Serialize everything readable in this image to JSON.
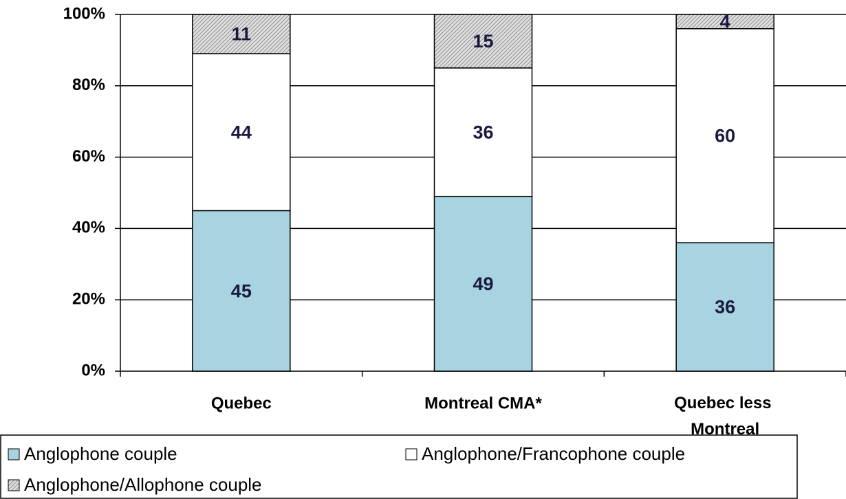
{
  "chart_data": {
    "type": "stacked_bar",
    "categories": [
      "Quebec",
      "Montreal CMA*",
      "Quebec less Montreal"
    ],
    "series": [
      {
        "name": "Anglophone couple",
        "color": "#a8d3e0",
        "values": [
          45,
          49,
          36
        ]
      },
      {
        "name": "Anglophone/Francophone couple",
        "color": "#ffffff",
        "values": [
          44,
          36,
          60
        ]
      },
      {
        "name": "Anglophone/Allophone couple",
        "color": "#8c8c8c",
        "pattern": "hatch",
        "values": [
          11,
          15,
          4
        ]
      }
    ],
    "ylim": [
      0,
      100
    ],
    "yticks": [
      {
        "value": 0,
        "label": "0%"
      },
      {
        "value": 20,
        "label": "20%"
      },
      {
        "value": 40,
        "label": "40%"
      },
      {
        "value": 60,
        "label": "60%"
      },
      {
        "value": 80,
        "label": "80%"
      },
      {
        "value": 100,
        "label": "100%"
      }
    ],
    "grid": true,
    "legend": "bottom"
  }
}
